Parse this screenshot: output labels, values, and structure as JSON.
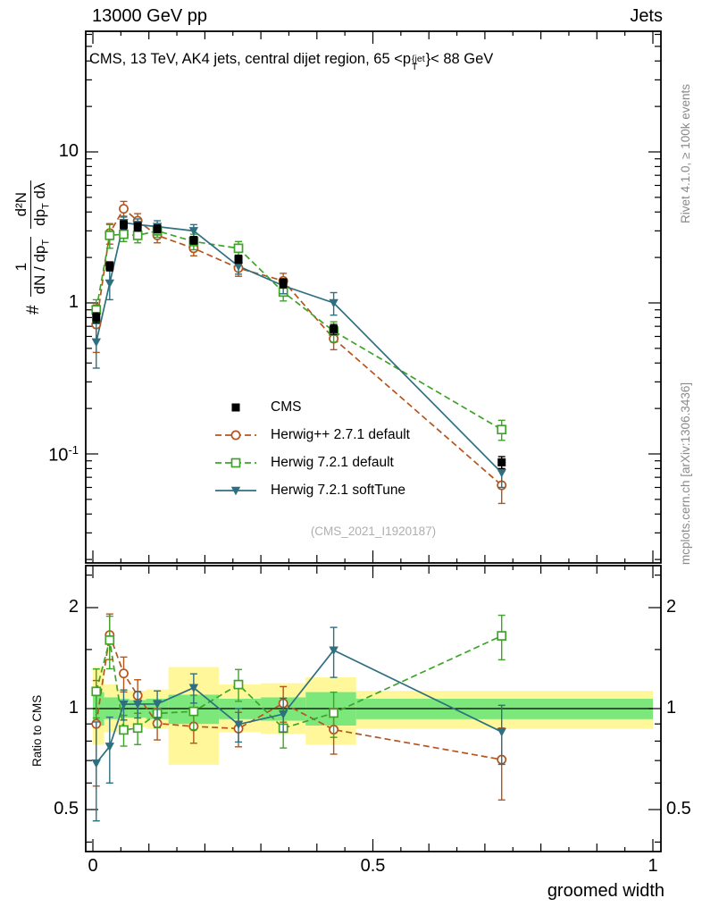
{
  "header": {
    "left": "13000 GeV pp",
    "right": "Jets"
  },
  "side": {
    "top": "Rivet 4.1.0, ≥ 100k events",
    "bottom": "mcplots.cern.ch [arXiv:1306.3436]"
  },
  "title": {
    "prefix": "CMS, 13 TeV, AK4 jets, central dijet region, 65 <p",
    "sup": "{jet",
    "sub": "T",
    "suffix": "}< 88 GeV"
  },
  "ylabel": {
    "hash": "#",
    "f1num": "1",
    "f1den": "dN / dp",
    "f1den_sub": "T",
    "f2num": "d²N",
    "f2den": "dp",
    "f2den_sub": "T",
    "f2den_tail": " dλ"
  },
  "ratio_ylabel": "Ratio to CMS",
  "xlabel": "groomed width",
  "watermark": "(CMS_2021_I1920187)",
  "chart_data": {
    "type": "line",
    "title": "CMS, 13 TeV, AK4 jets, central dijet region, 65 < pT{jet} < 88 GeV",
    "xlabel": "groomed width",
    "ylabel": "# 1/(dN/dpT) d2N/(dpT dlambda)",
    "x_range": [
      0,
      1
    ],
    "main_panel": {
      "yscale": "log",
      "ylim": [
        0.02,
        60
      ],
      "yticks": [
        {
          "label": "10",
          "v": 10
        },
        {
          "label": "1",
          "v": 1
        },
        {
          "label": "10",
          "sup": "-1",
          "v": 0.1
        }
      ]
    },
    "ratio_panel": {
      "yscale": "log",
      "ylim": [
        0.375,
        2.67
      ],
      "ylabel": "Ratio to CMS",
      "yticks": [
        {
          "label": "2",
          "v": 2
        },
        {
          "label": "1",
          "v": 1
        },
        {
          "label": "0.5",
          "v": 0.5
        }
      ]
    },
    "xticks": [
      {
        "label": "0",
        "v": 0
      },
      {
        "label": "0.5",
        "v": 0.5
      },
      {
        "label": "1",
        "v": 1
      }
    ],
    "x": [
      0.006,
      0.03,
      0.055,
      0.08,
      0.115,
      0.18,
      0.26,
      0.34,
      0.43,
      0.73
    ],
    "series": [
      {
        "name": "CMS",
        "color": "#000000",
        "marker": "square-filled",
        "line": "none",
        "values": [
          0.8,
          1.75,
          3.3,
          3.2,
          3.1,
          2.6,
          1.95,
          1.35,
          0.67,
          0.088
        ],
        "errors": [
          0.06,
          0.12,
          0.2,
          0.2,
          0.18,
          0.15,
          0.12,
          0.09,
          0.05,
          0.008
        ]
      },
      {
        "name": "Herwig++ 2.7.1 default",
        "color": "#b5551d",
        "marker": "circle-open",
        "line": "dashed",
        "values": [
          0.72,
          2.9,
          4.2,
          3.5,
          2.8,
          2.3,
          1.7,
          1.4,
          0.58,
          0.062
        ],
        "errors": [
          0.25,
          0.45,
          0.5,
          0.4,
          0.3,
          0.25,
          0.2,
          0.17,
          0.09,
          0.015
        ]
      },
      {
        "name": "Herwig 7.2.1 default",
        "color": "#3fa32a",
        "marker": "square-open",
        "line": "dashed",
        "values": [
          0.9,
          2.8,
          2.85,
          2.8,
          3.0,
          2.55,
          2.3,
          1.18,
          0.65,
          0.145
        ],
        "errors": [
          0.15,
          0.5,
          0.3,
          0.3,
          0.28,
          0.3,
          0.25,
          0.15,
          0.1,
          0.022
        ]
      },
      {
        "name": "Herwig 7.2.1 softTune",
        "color": "#2e6f80",
        "marker": "triangle-down-filled",
        "line": "solid",
        "values": [
          0.55,
          1.35,
          3.4,
          3.3,
          3.2,
          3.0,
          1.75,
          1.3,
          1.0,
          0.075
        ],
        "errors": [
          0.18,
          0.3,
          0.35,
          0.3,
          0.3,
          0.3,
          0.2,
          0.15,
          0.17,
          0.015
        ]
      }
    ],
    "ratio_bands": {
      "yellow": "#fff799",
      "green": "#7ce87c",
      "bins": [
        {
          "x0": 0.0,
          "x1": 0.02,
          "ylo": 0.78,
          "yhi": 1.33,
          "glo": 0.89,
          "ghi": 1.12
        },
        {
          "x0": 0.02,
          "x1": 0.045,
          "ylo": 0.85,
          "yhi": 1.18,
          "glo": 0.93,
          "ghi": 1.08
        },
        {
          "x0": 0.045,
          "x1": 0.065,
          "ylo": 0.88,
          "yhi": 1.14,
          "glo": 0.94,
          "ghi": 1.07
        },
        {
          "x0": 0.065,
          "x1": 0.095,
          "ylo": 0.88,
          "yhi": 1.13,
          "glo": 0.94,
          "ghi": 1.06
        },
        {
          "x0": 0.095,
          "x1": 0.135,
          "ylo": 0.87,
          "yhi": 1.14,
          "glo": 0.93,
          "ghi": 1.07
        },
        {
          "x0": 0.135,
          "x1": 0.225,
          "ylo": 0.68,
          "yhi": 1.33,
          "glo": 0.9,
          "ghi": 1.1
        },
        {
          "x0": 0.225,
          "x1": 0.3,
          "ylo": 0.85,
          "yhi": 1.18,
          "glo": 0.93,
          "ghi": 1.07
        },
        {
          "x0": 0.3,
          "x1": 0.38,
          "ylo": 0.84,
          "yhi": 1.19,
          "glo": 0.92,
          "ghi": 1.08
        },
        {
          "x0": 0.38,
          "x1": 0.47,
          "ylo": 0.78,
          "yhi": 1.24,
          "glo": 0.89,
          "ghi": 1.12
        },
        {
          "x0": 0.47,
          "x1": 1.0,
          "ylo": 0.87,
          "yhi": 1.13,
          "glo": 0.93,
          "ghi": 1.07
        }
      ]
    },
    "legend_position": "center-left of main panel"
  }
}
